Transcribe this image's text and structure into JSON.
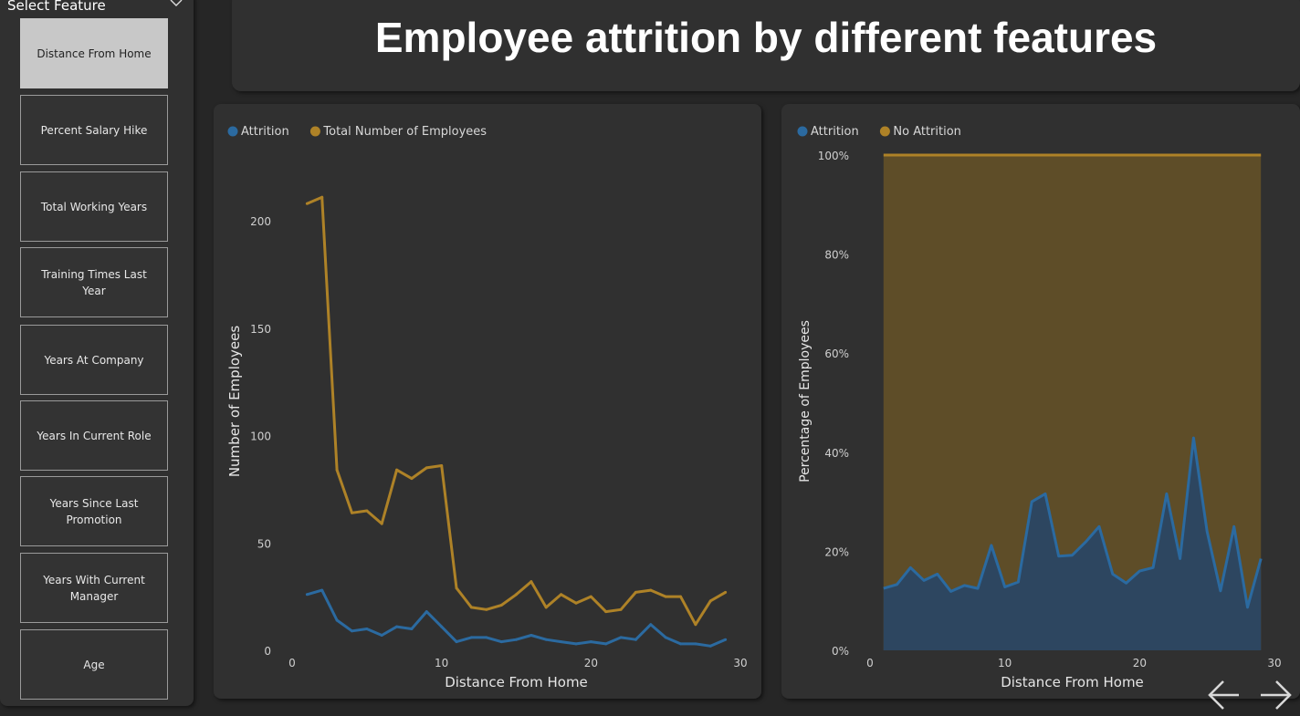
{
  "title": "Employee attrition by different features",
  "slicer": {
    "header": "Select Feature",
    "items": [
      {
        "label": "Distance From Home",
        "selected": true
      },
      {
        "label": "Percent Salary Hike",
        "selected": false
      },
      {
        "label": "Total Working Years",
        "selected": false
      },
      {
        "label": "Training Times Last Year",
        "selected": false
      },
      {
        "label": "Years At Company",
        "selected": false
      },
      {
        "label": "Years In Current Role",
        "selected": false
      },
      {
        "label": "Years Since Last Promotion",
        "selected": false
      },
      {
        "label": "Years With Current Manager",
        "selected": false
      },
      {
        "label": "Age",
        "selected": false
      }
    ]
  },
  "colors": {
    "attrition": "#2b6aa0",
    "employees": "#ae8227",
    "no_attrition_fill": "#5e4d28",
    "attrition_fill": "#2d4660"
  },
  "chart_data": [
    {
      "type": "line",
      "title": "",
      "xlabel": "Distance From Home",
      "ylabel": "Number of Employees",
      "xlim": [
        0,
        30
      ],
      "ylim": [
        0,
        220
      ],
      "xticks": [
        0,
        10,
        20,
        30
      ],
      "yticks": [
        0,
        50,
        100,
        150,
        200
      ],
      "grid": false,
      "legend_position": "top-left",
      "x": [
        1,
        2,
        3,
        4,
        5,
        6,
        7,
        8,
        9,
        10,
        11,
        12,
        13,
        14,
        15,
        16,
        17,
        18,
        19,
        20,
        21,
        22,
        23,
        24,
        25,
        26,
        27,
        28,
        29
      ],
      "series": [
        {
          "name": "Attrition",
          "color": "#2b6aa0",
          "values": [
            26,
            28,
            14,
            9,
            10,
            7,
            11,
            10,
            18,
            11,
            4,
            6,
            6,
            4,
            5,
            7,
            5,
            4,
            3,
            4,
            3,
            6,
            5,
            12,
            6,
            3,
            3,
            2,
            5
          ]
        },
        {
          "name": "Total Number of Employees",
          "color": "#ae8227",
          "values": [
            208,
            211,
            84,
            64,
            65,
            59,
            84,
            80,
            85,
            86,
            29,
            20,
            19,
            21,
            26,
            32,
            20,
            26,
            22,
            25,
            18,
            19,
            27,
            28,
            25,
            25,
            12,
            23,
            27
          ]
        }
      ]
    },
    {
      "type": "area",
      "title": "",
      "xlabel": "Distance From Home",
      "ylabel": "Percentage of Employees",
      "xlim": [
        0,
        30
      ],
      "ylim": [
        0,
        100
      ],
      "xticks": [
        0,
        10,
        20,
        30
      ],
      "yticks": [
        "0%",
        "20%",
        "40%",
        "60%",
        "80%",
        "100%"
      ],
      "grid": false,
      "stacked_percent": true,
      "legend_position": "top-left",
      "x": [
        1,
        2,
        3,
        4,
        5,
        6,
        7,
        8,
        9,
        10,
        11,
        12,
        13,
        14,
        15,
        16,
        17,
        18,
        19,
        20,
        21,
        22,
        23,
        24,
        25,
        26,
        27,
        28,
        29
      ],
      "series": [
        {
          "name": "Attrition",
          "color": "#2b6aa0",
          "values": [
            12.5,
            13.3,
            16.7,
            14.1,
            15.4,
            11.9,
            13.1,
            12.5,
            21.2,
            12.8,
            13.8,
            30.0,
            31.6,
            19.0,
            19.2,
            21.9,
            25.0,
            15.4,
            13.6,
            16.0,
            16.7,
            31.6,
            18.5,
            42.9,
            24.0,
            12.0,
            25.0,
            8.7,
            18.5
          ]
        },
        {
          "name": "No Attrition",
          "color": "#ae8227",
          "values": [
            87.5,
            86.7,
            83.3,
            85.9,
            84.6,
            88.1,
            86.9,
            87.5,
            78.8,
            87.2,
            86.2,
            70.0,
            68.4,
            81.0,
            80.8,
            78.1,
            75.0,
            84.6,
            86.4,
            84.0,
            83.3,
            68.4,
            81.5,
            57.1,
            76.0,
            88.0,
            75.0,
            91.3,
            81.5
          ]
        }
      ]
    }
  ],
  "nav": {
    "back_icon": "arrow-left-icon",
    "forward_icon": "arrow-right-icon"
  }
}
